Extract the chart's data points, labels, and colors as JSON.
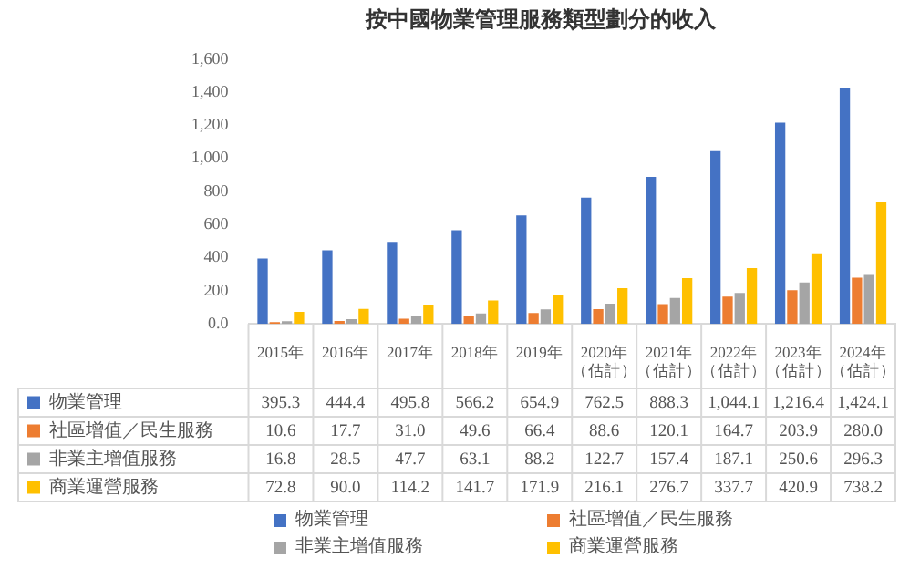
{
  "chart_data": {
    "type": "bar",
    "title": "按中國物業管理服務類型劃分的收入",
    "categories": [
      "2015年",
      "2016年",
      "2017年",
      "2018年",
      "2019年",
      "2020年（估計）",
      "2021年（估計）",
      "2022年（估計）",
      "2023年（估計）",
      "2024年（估計）"
    ],
    "series": [
      {
        "name": "物業管理",
        "color": "#4472c4",
        "values": [
          395.3,
          444.4,
          495.8,
          566.2,
          654.9,
          762.5,
          888.3,
          1044.1,
          1216.4,
          1424.1
        ],
        "value_labels": [
          "395.3",
          "444.4",
          "495.8",
          "566.2",
          "654.9",
          "762.5",
          "888.3",
          "1,044.1",
          "1,216.4",
          "1,424.1"
        ]
      },
      {
        "name": "社區增值／民生服務",
        "color": "#ed7d31",
        "values": [
          10.6,
          17.7,
          31.0,
          49.6,
          66.4,
          88.6,
          120.1,
          164.7,
          203.9,
          280.0
        ],
        "value_labels": [
          "10.6",
          "17.7",
          "31.0",
          "49.6",
          "66.4",
          "88.6",
          "120.1",
          "164.7",
          "203.9",
          "280.0"
        ]
      },
      {
        "name": "非業主增值服務",
        "color": "#a5a5a5",
        "values": [
          16.8,
          28.5,
          47.7,
          63.1,
          88.2,
          122.7,
          157.4,
          187.1,
          250.6,
          296.3
        ],
        "value_labels": [
          "16.8",
          "28.5",
          "47.7",
          "63.1",
          "88.2",
          "122.7",
          "157.4",
          "187.1",
          "250.6",
          "296.3"
        ]
      },
      {
        "name": "商業運營服務",
        "color": "#ffc000",
        "values": [
          72.8,
          90.0,
          114.2,
          141.7,
          171.9,
          216.1,
          276.7,
          337.7,
          420.9,
          738.2
        ],
        "value_labels": [
          "72.8",
          "90.0",
          "114.2",
          "141.7",
          "171.9",
          "216.1",
          "276.7",
          "337.7",
          "420.9",
          "738.2"
        ]
      }
    ],
    "ylim": [
      0,
      1600
    ],
    "yticks": [
      {
        "value": 0,
        "label": "0.0"
      },
      {
        "value": 200,
        "label": "200"
      },
      {
        "value": 400,
        "label": "400"
      },
      {
        "value": 600,
        "label": "600"
      },
      {
        "value": 800,
        "label": "800"
      },
      {
        "value": 1000,
        "label": "1,000"
      },
      {
        "value": 1200,
        "label": "1,200"
      },
      {
        "value": 1400,
        "label": "1,400"
      },
      {
        "value": 1600,
        "label": "1,600"
      }
    ],
    "legend": "bottom"
  }
}
